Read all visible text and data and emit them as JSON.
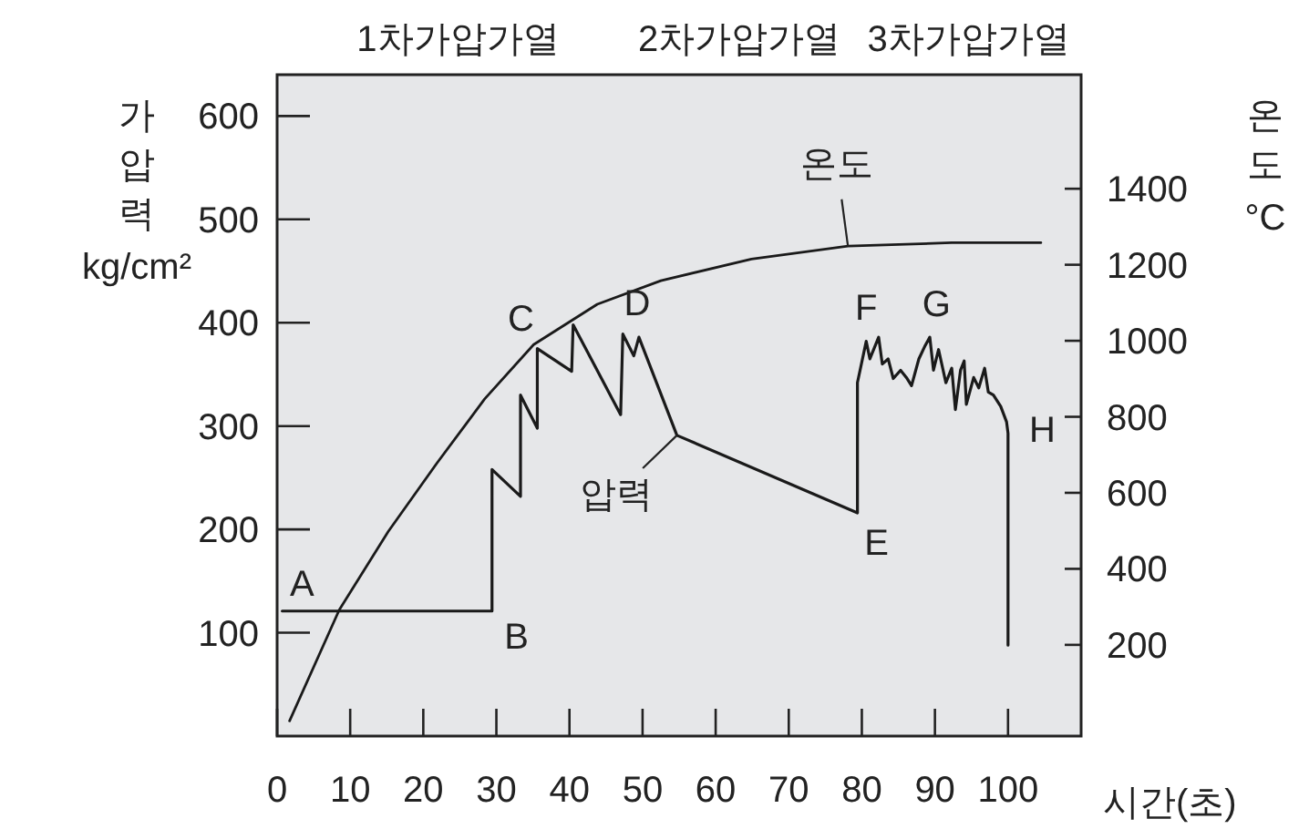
{
  "chart_data": {
    "type": "line",
    "xlabel": "시간(초)",
    "ylabel": "가압력 kg/cm²",
    "y2label": "온도 °C",
    "xlim": [
      0,
      110
    ],
    "xticks": [
      0,
      10,
      20,
      30,
      40,
      50,
      60,
      70,
      80,
      90,
      100
    ],
    "ylim": [
      0,
      640
    ],
    "yticks": [
      100,
      200,
      300,
      400,
      500,
      600
    ],
    "y2lim": [
      -40,
      1700
    ],
    "y2ticks": [
      200,
      400,
      600,
      800,
      1000,
      1200,
      1400
    ],
    "series": [
      {
        "color": "#1a1a1a",
        "x": [
          0.7,
          29.4,
          29.4,
          33.3,
          33.3,
          35.6,
          35.6,
          40.3,
          40.5,
          47.0,
          47.3,
          48.8,
          49.5,
          54.7,
          79.4,
          79.4,
          80.6,
          81.1,
          82.3,
          82.8,
          83.6,
          84.3,
          85.3,
          86.1,
          86.8,
          87.8,
          88.6,
          89.3,
          89.8,
          90.5,
          91.5,
          92.3,
          92.8,
          93.5,
          94.0,
          94.3,
          95.3,
          96.0,
          96.8,
          97.3,
          98.0,
          99.0,
          99.8,
          100,
          100
        ],
        "values": [
          121,
          121,
          258,
          232,
          330,
          298,
          375,
          353,
          398,
          311,
          389,
          368,
          386,
          291,
          216,
          342,
          382,
          365,
          386,
          360,
          365,
          346,
          354,
          347,
          339,
          365,
          377,
          386,
          354,
          374,
          342,
          356,
          316,
          354,
          363,
          321,
          347,
          337,
          356,
          333,
          330,
          319,
          304,
          293,
          88
        ]
      },
      {
        "color": "#1a1a1a",
        "axis": "y2",
        "x": [
          1.7,
          8.5,
          15.2,
          21.9,
          28.4,
          35.1,
          43.8,
          52.5,
          64.9,
          78.1,
          92.3,
          104.5
        ],
        "values": [
          0,
          292,
          498,
          679,
          847,
          990,
          1096,
          1158,
          1215,
          1249,
          1258,
          1258
        ]
      }
    ],
    "annotations": [
      {
        "text": "A",
        "x": 0.7,
        "y": 121
      },
      {
        "text": "B",
        "x": 29.4,
        "y": 121
      },
      {
        "text": "C",
        "x": 35.6,
        "y": 375
      },
      {
        "text": "D",
        "x": 49.5,
        "y": 386
      },
      {
        "text": "E",
        "x": 79.4,
        "y": 216
      },
      {
        "text": "F",
        "x": 80.6,
        "y": 382
      },
      {
        "text": "G",
        "x": 89.3,
        "y": 386
      },
      {
        "text": "H",
        "x": 100,
        "y": 293
      },
      {
        "text": "온도",
        "x": 78.1,
        "y": 474
      },
      {
        "text": "압력",
        "x": 54.7,
        "y": 291
      },
      "1차가압가열",
      "2차가압가열",
      "3차가압가열"
    ]
  }
}
